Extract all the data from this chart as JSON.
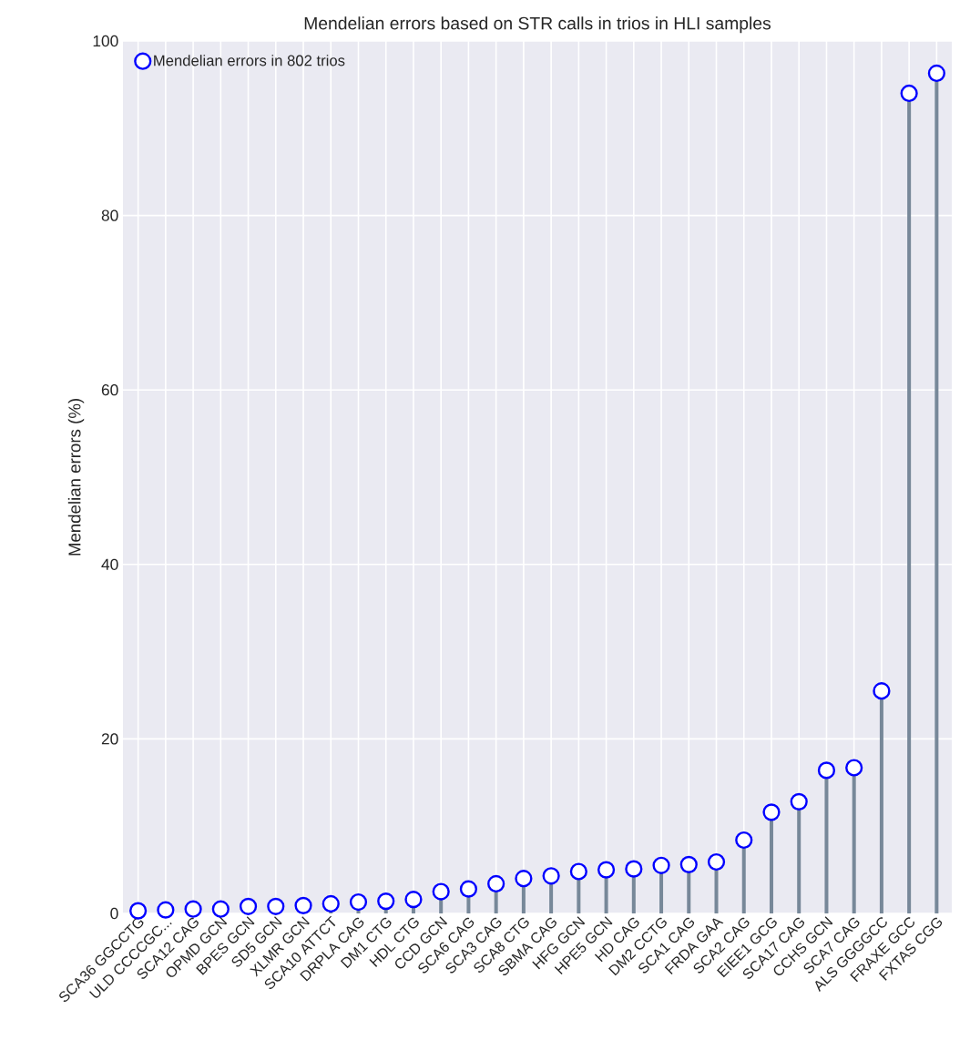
{
  "chart_data": {
    "type": "lollipop",
    "title": "Mendelian errors based on STR calls in trios in HLI samples",
    "ylabel": "Mendelian errors (%)",
    "categories": [
      "SCA36 GGCCTG",
      "ULD CCCCGC...",
      "SCA12 CAG",
      "OPMD GCN",
      "BPES GCN",
      "SD5 GCN",
      "XLMR GCN",
      "SCA10 ATTCT",
      "DRPLA CAG",
      "DM1 CTG",
      "HDL CTG",
      "CCD GCN",
      "SCA6 CAG",
      "SCA3 CAG",
      "SCA8 CTG",
      "SBMA CAG",
      "HFG GCN",
      "HPE5 GCN",
      "HD CAG",
      "DM2 CCTG",
      "SCA1 CAG",
      "FRDA GAA",
      "SCA2 CAG",
      "EIEE1 GCG",
      "SCA17 CAG",
      "CCHS GCN",
      "SCA7 CAG",
      "ALS GGGGCC",
      "FRAXE GCC",
      "FXTAS CGG"
    ],
    "series": [
      {
        "name": "Mendelian errors in 802 trios",
        "color": "#0000ff",
        "values": [
          0.3,
          0.4,
          0.5,
          0.5,
          0.8,
          0.8,
          0.9,
          1.1,
          1.3,
          1.4,
          1.6,
          2.5,
          2.8,
          3.4,
          4.0,
          4.3,
          4.8,
          5.0,
          5.1,
          5.5,
          5.6,
          5.9,
          8.4,
          11.6,
          12.8,
          16.4,
          16.7,
          25.5,
          94.0,
          96.3
        ]
      }
    ],
    "ylim": [
      0,
      100
    ],
    "yticks": [
      0,
      20,
      40,
      60,
      80,
      100
    ],
    "grid": true,
    "legend": "top left"
  }
}
